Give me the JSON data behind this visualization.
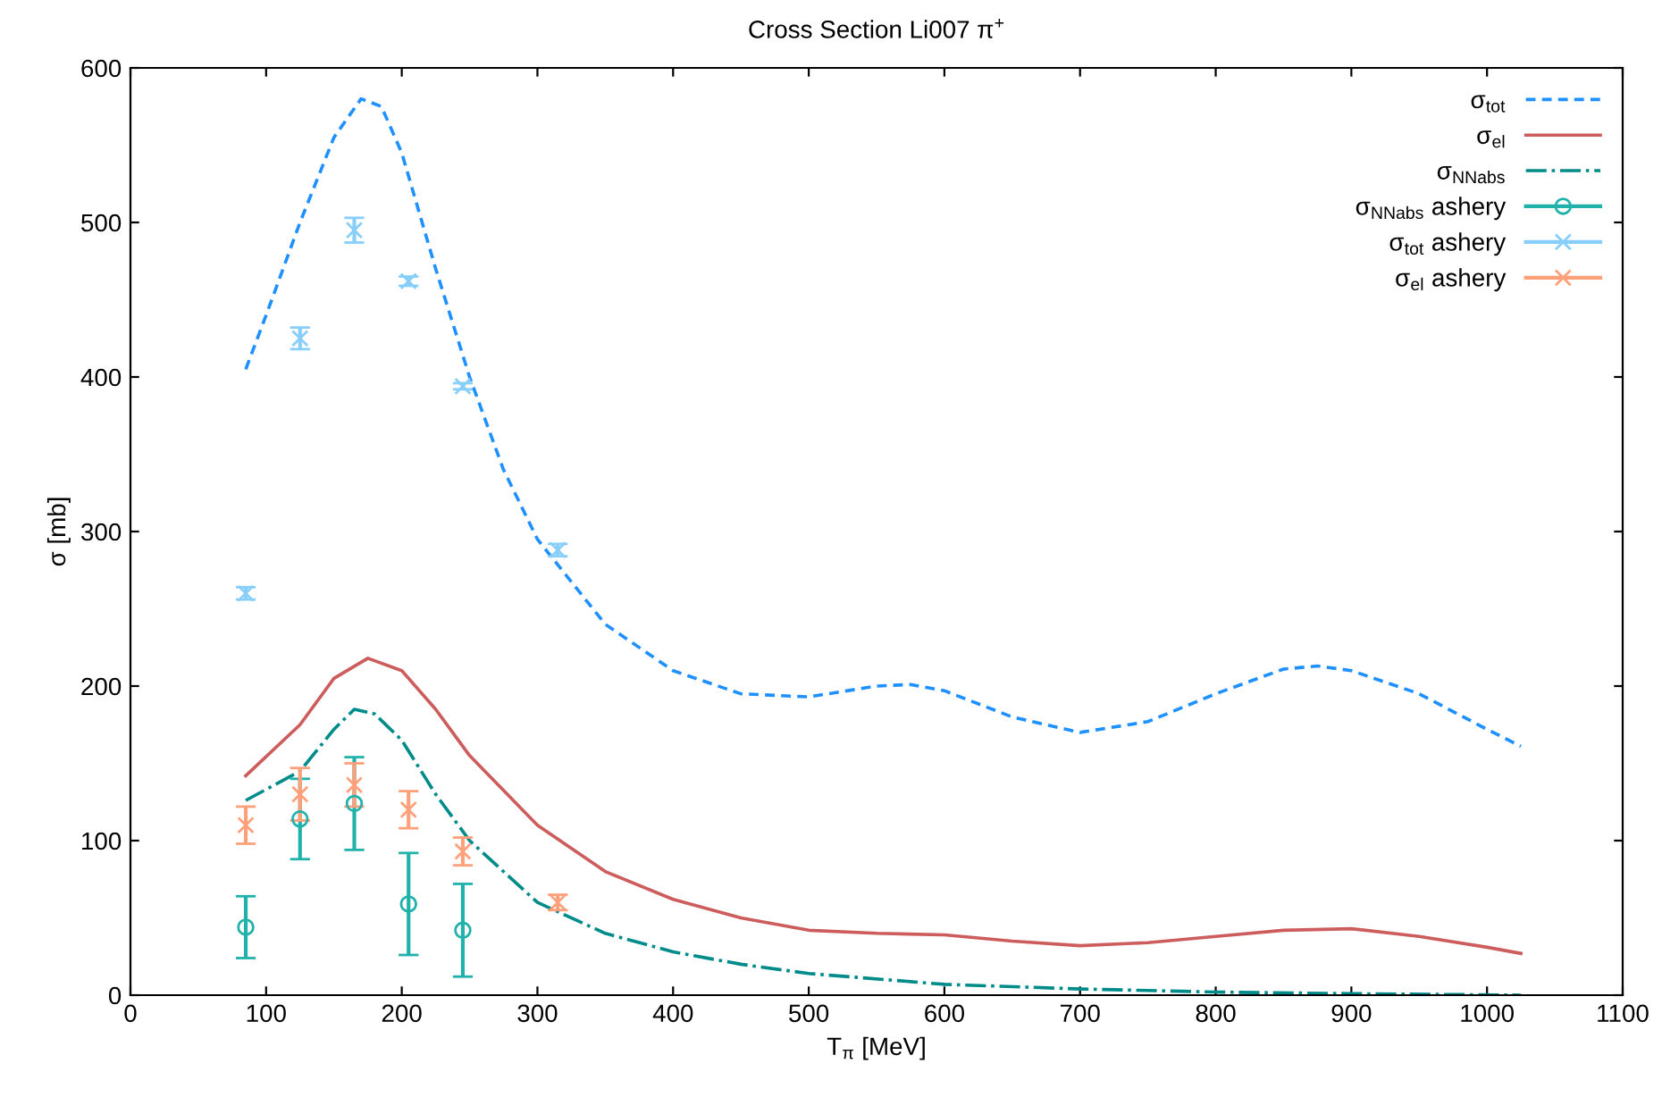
{
  "chart_data": {
    "type": "line",
    "title": "Cross Section Li007 π$^{+}$",
    "xlabel": "T$_{π}$ [MeV]",
    "ylabel": "σ [mb]",
    "xlim": [
      0,
      1100
    ],
    "xticks": [
      0,
      100,
      200,
      300,
      400,
      500,
      600,
      700,
      800,
      900,
      1000,
      1100
    ],
    "ylim": [
      0,
      600
    ],
    "yticks": [
      0,
      100,
      200,
      300,
      400,
      500,
      600
    ],
    "grid": false,
    "legend": "top right",
    "series": [
      {
        "name": "σ$_{tot}$",
        "color": "#1e90ff",
        "line_style": "dashed",
        "x": [
          85,
          100,
          125,
          150,
          170,
          185,
          200,
          225,
          250,
          275,
          300,
          350,
          400,
          450,
          500,
          550,
          575,
          600,
          650,
          700,
          750,
          800,
          850,
          875,
          900,
          950,
          1000,
          1025
        ],
        "values": [
          405,
          440,
          500,
          555,
          580,
          575,
          545,
          470,
          400,
          340,
          295,
          240,
          210,
          195,
          193,
          200,
          201,
          197,
          180,
          170,
          177,
          195,
          211,
          213,
          210,
          195,
          172,
          161
        ]
      },
      {
        "name": "σ$_{el}$",
        "color": "#cd5c5c",
        "line_style": "solid",
        "x": [
          85,
          125,
          150,
          175,
          200,
          225,
          250,
          300,
          350,
          400,
          450,
          500,
          550,
          600,
          650,
          700,
          750,
          800,
          850,
          900,
          950,
          1000,
          1025
        ],
        "values": [
          142,
          175,
          205,
          218,
          210,
          185,
          155,
          110,
          80,
          62,
          50,
          42,
          40,
          39,
          35,
          32,
          34,
          38,
          42,
          43,
          38,
          31,
          27
        ]
      },
      {
        "name": "σ$_{NNabs}$",
        "color": "#008b8b",
        "line_style": "dashdot",
        "x": [
          85,
          125,
          150,
          165,
          180,
          200,
          225,
          250,
          300,
          350,
          400,
          450,
          500,
          600,
          700,
          800,
          900,
          1025
        ],
        "values": [
          126,
          145,
          172,
          185,
          182,
          165,
          130,
          100,
          60,
          40,
          28,
          20,
          14,
          7,
          4,
          2,
          1,
          0
        ]
      },
      {
        "name": "σ$_{NNabs}$ ashery",
        "type": "scatter",
        "color": "#20b2aa",
        "marker": "circle",
        "x": [
          85,
          125,
          165,
          205,
          245
        ],
        "values": [
          44,
          114,
          124,
          59,
          42
        ],
        "errors": [
          20,
          26,
          30,
          33,
          30
        ]
      },
      {
        "name": "σ$_{tot}$ ashery",
        "type": "scatter",
        "color": "#87cefa",
        "marker": "cross",
        "x": [
          85,
          125,
          165,
          205,
          245,
          315
        ],
        "values": [
          260,
          425,
          495,
          462,
          394,
          288
        ],
        "errors": [
          4,
          7,
          8,
          3,
          2,
          4
        ]
      },
      {
        "name": "σ$_{el}$ ashery",
        "type": "scatter",
        "color": "#ffa07a",
        "marker": "cross",
        "x": [
          85,
          125,
          165,
          205,
          245,
          315
        ],
        "values": [
          110,
          130,
          136,
          120,
          93,
          60
        ],
        "errors": [
          12,
          17,
          14,
          12,
          9,
          5
        ]
      }
    ]
  }
}
